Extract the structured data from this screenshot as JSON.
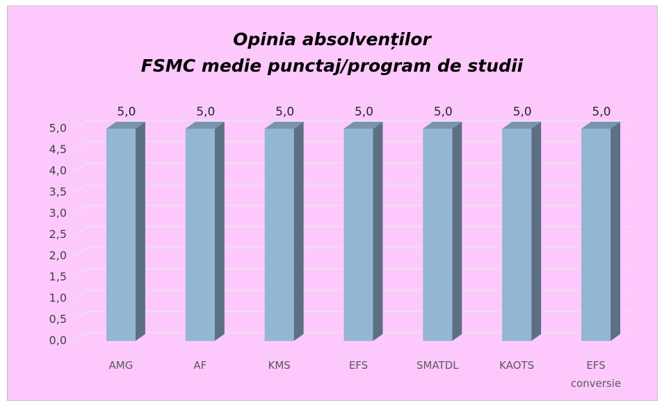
{
  "chart_data": {
    "type": "bar",
    "title": [
      "Opinia absolvenților",
      "FSMC medie punctaj/program de studii"
    ],
    "categories": [
      "AMG",
      "AF",
      "KMS",
      "EFS",
      "SMATDL",
      "KAOTS",
      "EFS conversie"
    ],
    "values": [
      5,
      5,
      5,
      5,
      5,
      5,
      5
    ],
    "value_labels": [
      "5,0",
      "5,0",
      "5,0",
      "5,0",
      "5,0",
      "5,0",
      "5,0"
    ],
    "color": "#93b6d3",
    "ylim": [
      0,
      5
    ],
    "yticks": [
      {
        "value": 0,
        "label": "0,0"
      },
      {
        "value": 0.5,
        "label": "0,5"
      },
      {
        "value": 1,
        "label": "1,0"
      },
      {
        "value": 1.5,
        "label": "1,5"
      },
      {
        "value": 2,
        "label": "2,0"
      },
      {
        "value": 2.5,
        "label": "2,5"
      },
      {
        "value": 3,
        "label": "3,0"
      },
      {
        "value": 3.5,
        "label": "3,5"
      },
      {
        "value": 4,
        "label": "4,0"
      },
      {
        "value": 4.5,
        "label": "4,5"
      },
      {
        "value": 5,
        "label": "5,0"
      }
    ],
    "grid": true
  }
}
